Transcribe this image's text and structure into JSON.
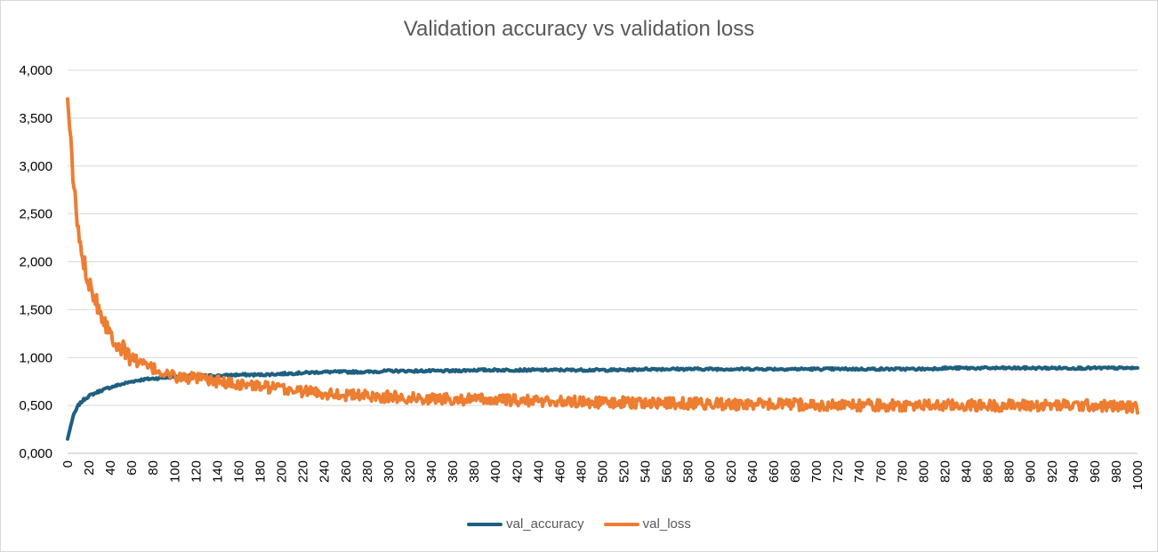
{
  "chart_data": {
    "type": "line",
    "title": "Validation accuracy vs validation loss",
    "xlabel": "",
    "ylabel": "",
    "xlim": [
      0,
      1000
    ],
    "ylim": [
      0,
      4
    ],
    "grid": true,
    "legend_position": "bottom",
    "y_tick_labels": [
      "0,000",
      "0,500",
      "1,000",
      "1,500",
      "2,000",
      "2,500",
      "3,000",
      "3,500",
      "4,000"
    ],
    "y_tick_values": [
      0,
      0.5,
      1,
      1.5,
      2,
      2.5,
      3,
      3.5,
      4
    ],
    "x_tick_labels": [
      "0",
      "20",
      "40",
      "60",
      "80",
      "100",
      "120",
      "140",
      "160",
      "180",
      "200",
      "220",
      "240",
      "260",
      "280",
      "300",
      "320",
      "340",
      "360",
      "380",
      "400",
      "420",
      "440",
      "460",
      "480",
      "500",
      "520",
      "540",
      "560",
      "580",
      "600",
      "620",
      "640",
      "660",
      "680",
      "700",
      "720",
      "740",
      "760",
      "780",
      "800",
      "820",
      "840",
      "860",
      "880",
      "900",
      "920",
      "940",
      "960",
      "980",
      "1000"
    ],
    "x": [
      0,
      5,
      10,
      15,
      20,
      30,
      40,
      50,
      60,
      70,
      80,
      90,
      100,
      120,
      140,
      160,
      180,
      200,
      220,
      240,
      260,
      280,
      300,
      320,
      340,
      360,
      380,
      400,
      420,
      440,
      460,
      480,
      500,
      520,
      540,
      560,
      580,
      600,
      620,
      640,
      660,
      680,
      700,
      720,
      740,
      760,
      780,
      800,
      820,
      840,
      860,
      880,
      900,
      920,
      940,
      960,
      980,
      1000
    ],
    "series": [
      {
        "name": "val_accuracy",
        "color": "#1f5f7f",
        "values": [
          0.15,
          0.38,
          0.5,
          0.56,
          0.6,
          0.65,
          0.69,
          0.72,
          0.75,
          0.77,
          0.78,
          0.79,
          0.8,
          0.81,
          0.81,
          0.82,
          0.82,
          0.83,
          0.84,
          0.85,
          0.85,
          0.85,
          0.86,
          0.86,
          0.86,
          0.86,
          0.87,
          0.87,
          0.87,
          0.87,
          0.87,
          0.87,
          0.87,
          0.87,
          0.88,
          0.88,
          0.88,
          0.88,
          0.88,
          0.88,
          0.88,
          0.88,
          0.88,
          0.88,
          0.88,
          0.88,
          0.88,
          0.88,
          0.89,
          0.89,
          0.89,
          0.89,
          0.89,
          0.89,
          0.89,
          0.89,
          0.89,
          0.89
        ]
      },
      {
        "name": "val_loss",
        "color": "#ed7d31",
        "values": [
          3.7,
          2.9,
          2.3,
          2.0,
          1.8,
          1.5,
          1.25,
          1.1,
          1.0,
          0.93,
          0.88,
          0.84,
          0.8,
          0.78,
          0.75,
          0.72,
          0.7,
          0.67,
          0.65,
          0.63,
          0.61,
          0.6,
          0.59,
          0.58,
          0.57,
          0.57,
          0.56,
          0.56,
          0.55,
          0.55,
          0.54,
          0.54,
          0.53,
          0.53,
          0.53,
          0.52,
          0.52,
          0.52,
          0.51,
          0.51,
          0.51,
          0.51,
          0.5,
          0.5,
          0.5,
          0.5,
          0.5,
          0.5,
          0.5,
          0.5,
          0.5,
          0.5,
          0.5,
          0.5,
          0.5,
          0.5,
          0.49,
          0.48
        ]
      }
    ]
  }
}
